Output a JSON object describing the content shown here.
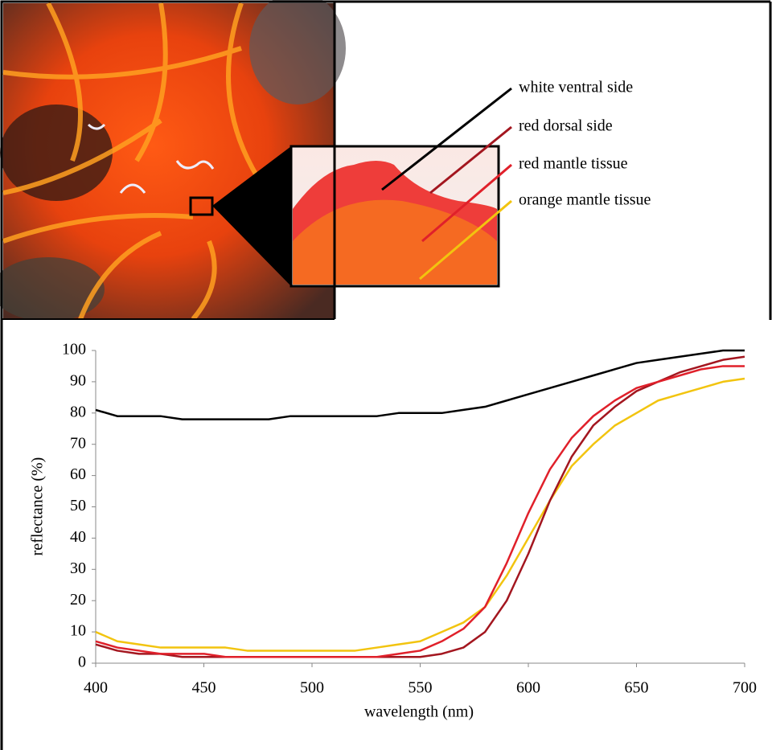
{
  "chart_data": {
    "type": "line",
    "xlabel": "wavelength (nm)",
    "ylabel": "reflectance (%)",
    "x": [
      400,
      410,
      420,
      430,
      440,
      450,
      460,
      470,
      480,
      490,
      500,
      510,
      520,
      530,
      540,
      550,
      560,
      570,
      580,
      590,
      600,
      610,
      620,
      630,
      640,
      650,
      660,
      670,
      680,
      690,
      700
    ],
    "series": [
      {
        "name": "white ventral side",
        "color": "#000000",
        "values": [
          81,
          79,
          79,
          79,
          78,
          78,
          78,
          78,
          78,
          79,
          79,
          79,
          79,
          79,
          80,
          80,
          80,
          81,
          82,
          84,
          86,
          88,
          90,
          92,
          94,
          96,
          97,
          98,
          99,
          100,
          100
        ]
      },
      {
        "name": "red dorsal side",
        "color": "#a3161f",
        "values": [
          6,
          4,
          3,
          3,
          2,
          2,
          2,
          2,
          2,
          2,
          2,
          2,
          2,
          2,
          2,
          2,
          3,
          5,
          10,
          20,
          35,
          52,
          66,
          76,
          82,
          87,
          90,
          93,
          95,
          97,
          98
        ]
      },
      {
        "name": "red mantle tissue",
        "color": "#e0202a",
        "values": [
          7,
          5,
          4,
          3,
          3,
          3,
          2,
          2,
          2,
          2,
          2,
          2,
          2,
          2,
          3,
          4,
          7,
          11,
          18,
          32,
          48,
          62,
          72,
          79,
          84,
          88,
          90,
          92,
          94,
          95,
          95
        ]
      },
      {
        "name": "orange mantle tissue",
        "color": "#f2c40f",
        "values": [
          10,
          7,
          6,
          5,
          5,
          5,
          5,
          4,
          4,
          4,
          4,
          4,
          4,
          5,
          6,
          7,
          10,
          13,
          18,
          28,
          40,
          52,
          63,
          70,
          76,
          80,
          84,
          86,
          88,
          90,
          91
        ]
      }
    ],
    "xlim": [
      400,
      700
    ],
    "ylim": [
      0,
      100
    ],
    "xticks": [
      400,
      450,
      500,
      550,
      600,
      650,
      700
    ],
    "yticks": [
      0,
      10,
      20,
      30,
      40,
      50,
      60,
      70,
      80,
      90,
      100
    ]
  }
}
